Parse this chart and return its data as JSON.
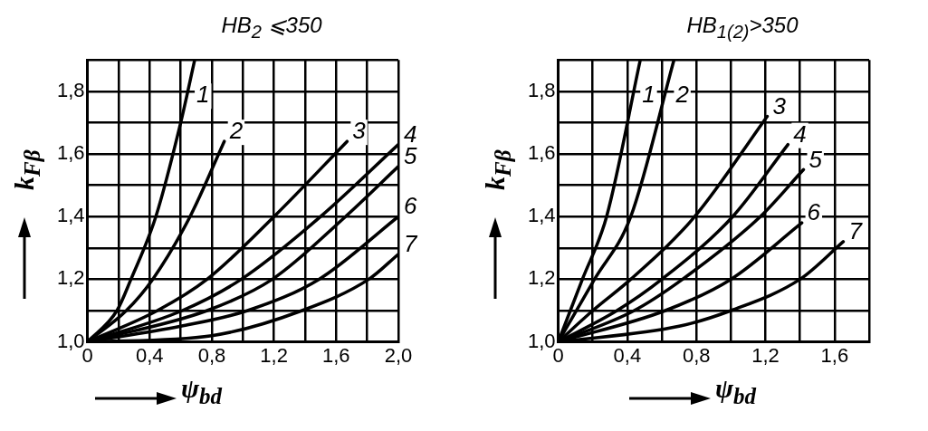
{
  "chart_data": [
    {
      "type": "line",
      "title": "HB$_{2}$ ⩽350",
      "xlabel": "ψ$_{bd}$",
      "ylabel": "k$_{Fβ}$",
      "xlim": [
        0,
        2.0
      ],
      "ylim": [
        1.0,
        1.9
      ],
      "xticks": [
        {
          "value": 0,
          "label": "0"
        },
        {
          "value": 0.2,
          "label": null
        },
        {
          "value": 0.4,
          "label": "0,4"
        },
        {
          "value": 0.6,
          "label": null
        },
        {
          "value": 0.8,
          "label": "0,8"
        },
        {
          "value": 1.0,
          "label": null
        },
        {
          "value": 1.2,
          "label": "1,2"
        },
        {
          "value": 1.4,
          "label": null
        },
        {
          "value": 1.6,
          "label": "1,6"
        },
        {
          "value": 1.8,
          "label": null
        },
        {
          "value": 2.0,
          "label": "2,0"
        }
      ],
      "yticks": [
        {
          "value": 1.0,
          "label": "1,0"
        },
        {
          "value": 1.1,
          "label": null
        },
        {
          "value": 1.2,
          "label": "1,2"
        },
        {
          "value": 1.3,
          "label": null
        },
        {
          "value": 1.4,
          "label": "1,4"
        },
        {
          "value": 1.5,
          "label": null
        },
        {
          "value": 1.6,
          "label": "1,6"
        },
        {
          "value": 1.7,
          "label": null
        },
        {
          "value": 1.8,
          "label": "1,8"
        },
        {
          "value": 1.9,
          "label": null
        }
      ],
      "grid": true,
      "legend": false,
      "marker": "none",
      "line_style": "solid",
      "series": [
        {
          "name": "1",
          "color": "#000000",
          "x": [
            0,
            0.19,
            0.28,
            0.44,
            0.6,
            0.69
          ],
          "values": [
            1.0,
            1.1,
            1.2,
            1.4,
            1.7,
            1.9
          ]
        },
        {
          "name": "2",
          "color": "#000000",
          "x": [
            0,
            0.25,
            0.42,
            0.66,
            0.88
          ],
          "values": [
            1.0,
            1.1,
            1.2,
            1.4,
            1.64
          ]
        },
        {
          "name": "3",
          "color": "#000000",
          "x": [
            0,
            0.45,
            0.77,
            1.2,
            1.67
          ],
          "values": [
            1.0,
            1.1,
            1.2,
            1.4,
            1.64
          ]
        },
        {
          "name": "4",
          "color": "#000000",
          "x": [
            0,
            0.61,
            0.99,
            1.5,
            2.0
          ],
          "values": [
            1.0,
            1.1,
            1.2,
            1.4,
            1.63
          ]
        },
        {
          "name": "5",
          "color": "#000000",
          "x": [
            0,
            0.77,
            1.19,
            1.66,
            2.0
          ],
          "values": [
            1.0,
            1.1,
            1.2,
            1.4,
            1.56
          ]
        },
        {
          "name": "6",
          "color": "#000000",
          "x": [
            0,
            0.6,
            1.03,
            1.49,
            2.0
          ],
          "values": [
            1.0,
            1.05,
            1.1,
            1.2,
            1.4
          ]
        },
        {
          "name": "7",
          "color": "#000000",
          "x": [
            0,
            0.8,
            1.38,
            1.81,
            2.0
          ],
          "values": [
            1.0,
            1.02,
            1.1,
            1.2,
            1.28
          ]
        }
      ]
    },
    {
      "type": "line",
      "title": "HB$_{1(2)}$>350",
      "xlabel": "ψ$_{bd}$",
      "ylabel": "k$_{Fβ}$",
      "xlim": [
        0,
        1.8
      ],
      "ylim": [
        1.0,
        1.9
      ],
      "xticks": [
        {
          "value": 0,
          "label": "0"
        },
        {
          "value": 0.2,
          "label": null
        },
        {
          "value": 0.4,
          "label": "0,4"
        },
        {
          "value": 0.6,
          "label": null
        },
        {
          "value": 0.8,
          "label": "0,8"
        },
        {
          "value": 1.0,
          "label": null
        },
        {
          "value": 1.2,
          "label": "1,2"
        },
        {
          "value": 1.4,
          "label": null
        },
        {
          "value": 1.6,
          "label": "1,6"
        },
        {
          "value": 1.8,
          "label": null
        }
      ],
      "yticks": [
        {
          "value": 1.0,
          "label": "1,0"
        },
        {
          "value": 1.1,
          "label": null
        },
        {
          "value": 1.2,
          "label": "1,2"
        },
        {
          "value": 1.3,
          "label": null
        },
        {
          "value": 1.4,
          "label": "1,4"
        },
        {
          "value": 1.5,
          "label": null
        },
        {
          "value": 1.6,
          "label": "1,6"
        },
        {
          "value": 1.7,
          "label": null
        },
        {
          "value": 1.8,
          "label": "1,8"
        },
        {
          "value": 1.9,
          "label": null
        }
      ],
      "grid": true,
      "legend": false,
      "marker": "none",
      "line_style": "solid",
      "series": [
        {
          "name": "1",
          "color": "#000000",
          "x": [
            0,
            0.14,
            0.28,
            0.475
          ],
          "values": [
            1.0,
            1.2,
            1.4,
            1.9
          ]
        },
        {
          "name": "2",
          "color": "#000000",
          "x": [
            0,
            0.21,
            0.42,
            0.67
          ],
          "values": [
            1.0,
            1.2,
            1.4,
            1.9
          ]
        },
        {
          "name": "3",
          "color": "#000000",
          "x": [
            0,
            0.2,
            0.42,
            0.79,
            1.21
          ],
          "values": [
            1.0,
            1.1,
            1.2,
            1.4,
            1.72
          ]
        },
        {
          "name": "4",
          "color": "#000000",
          "x": [
            0,
            0.34,
            0.6,
            1.01,
            1.33
          ],
          "values": [
            1.0,
            1.1,
            1.2,
            1.4,
            1.63
          ]
        },
        {
          "name": "5",
          "color": "#000000",
          "x": [
            0,
            0.44,
            0.72,
            1.17,
            1.42
          ],
          "values": [
            1.0,
            1.1,
            1.2,
            1.4,
            1.55
          ]
        },
        {
          "name": "6",
          "color": "#000000",
          "x": [
            0,
            0.62,
            1.0,
            1.41
          ],
          "values": [
            1.0,
            1.1,
            1.2,
            1.38
          ]
        },
        {
          "name": "7",
          "color": "#000000",
          "x": [
            0,
            0.7,
            1.0,
            1.4,
            1.65
          ],
          "values": [
            1.0,
            1.05,
            1.1,
            1.2,
            1.32
          ]
        }
      ]
    }
  ]
}
